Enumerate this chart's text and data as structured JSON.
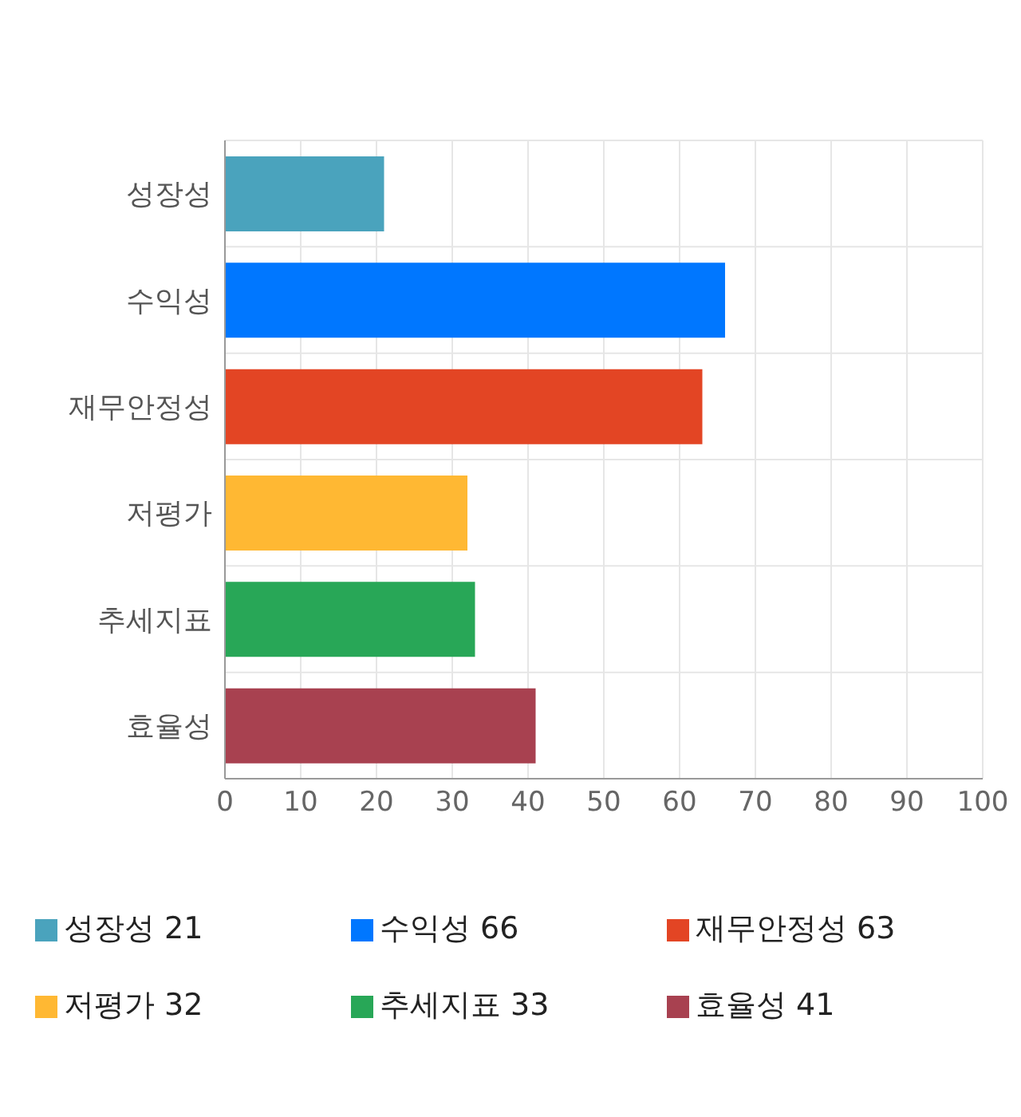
{
  "chart_data": {
    "type": "bar",
    "orientation": "horizontal",
    "stacked": true,
    "categories": [
      "성장성",
      "수익성",
      "재무안정성",
      "저평가",
      "추세지표",
      "효율성"
    ],
    "series": [
      {
        "name": "성장성 21",
        "color": "#4aa3bd",
        "values": [
          21,
          null,
          null,
          null,
          null,
          null
        ]
      },
      {
        "name": "수익성 66",
        "color": "#0077ff",
        "values": [
          null,
          66,
          null,
          null,
          null,
          null
        ]
      },
      {
        "name": "재무안정성 63",
        "color": "#e34524",
        "values": [
          null,
          null,
          63,
          null,
          null,
          null
        ]
      },
      {
        "name": "저평가 32",
        "color": "#ffb833",
        "values": [
          null,
          null,
          null,
          32,
          null,
          null
        ]
      },
      {
        "name": "추세지표 33",
        "color": "#28a757",
        "values": [
          null,
          null,
          null,
          null,
          33,
          null
        ]
      },
      {
        "name": "효율성 41",
        "color": "#a84150",
        "values": [
          null,
          null,
          null,
          null,
          null,
          41
        ]
      }
    ],
    "xlim": [
      0,
      100
    ],
    "xticks": [
      0,
      10,
      20,
      30,
      40,
      50,
      60,
      70,
      80,
      90,
      100
    ],
    "grid": true,
    "legend": "bottom"
  }
}
